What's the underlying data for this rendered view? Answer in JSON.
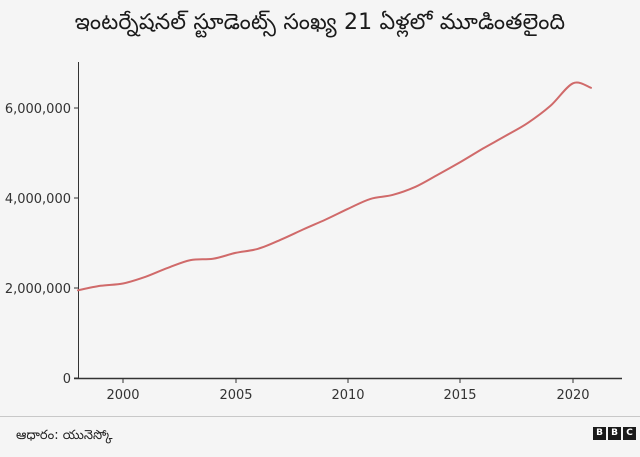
{
  "header": {
    "title": "ఇంటర్నేషనల్ స్టూడెంట్స్ సంఖ్య 21 ఏళ్లలో మూడింతలైంది"
  },
  "footer": {
    "source": "ఆధారం: యునెస్కో",
    "logo": [
      "B",
      "B",
      "C"
    ]
  },
  "colors": {
    "line": "#d06a6a",
    "axis": "#333333",
    "background": "#f5f5f5"
  },
  "chart_data": {
    "type": "line",
    "title": "ఇంటర్నేషనల్ స్టూడెంట్స్ సంఖ్య 21 ఏళ్లలో మూడింతలైంది",
    "xlabel": "",
    "ylabel": "",
    "x_ticks": [
      "2000",
      "2005",
      "2010",
      "2015",
      "2020"
    ],
    "y_ticks": [
      "0",
      "2,000,000",
      "4,000,000",
      "6,000,000"
    ],
    "xlim": [
      1998,
      2022
    ],
    "ylim": [
      0,
      7000000
    ],
    "grid": false,
    "legend": null,
    "series": [
      {
        "name": "International students",
        "x": [
          1998,
          1999,
          2000,
          2001,
          2002,
          2003,
          2004,
          2005,
          2006,
          2007,
          2008,
          2009,
          2010,
          2011,
          2012,
          2013,
          2014,
          2015,
          2016,
          2017,
          2018,
          2019,
          2020,
          2020.8
        ],
        "values": [
          1950000,
          2050000,
          2100000,
          2250000,
          2450000,
          2620000,
          2650000,
          2780000,
          2870000,
          3070000,
          3300000,
          3520000,
          3760000,
          3980000,
          4070000,
          4250000,
          4520000,
          4800000,
          5100000,
          5380000,
          5670000,
          6050000,
          6550000,
          6450000
        ]
      }
    ],
    "source": "ఆధారం: యునెస్కో"
  }
}
